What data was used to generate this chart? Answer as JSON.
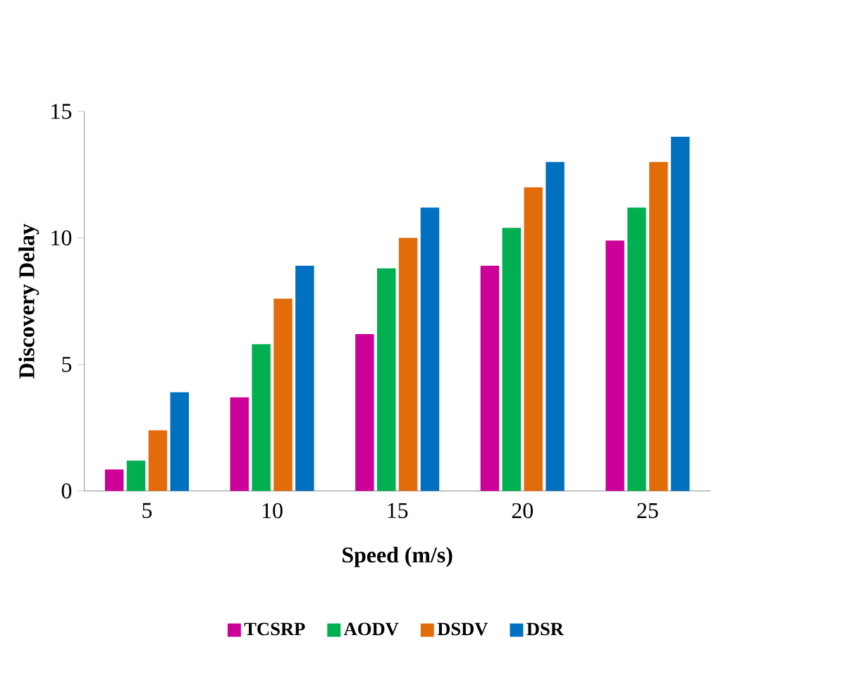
{
  "chart_data": {
    "type": "bar",
    "xlabel": "Speed (m/s)",
    "ylabel": "Discovery Delay",
    "categories": [
      "5",
      "10",
      "15",
      "20",
      "25"
    ],
    "series": [
      {
        "name": "TCSRP",
        "color": "#cc0099",
        "values": [
          0.85,
          3.7,
          6.2,
          8.9,
          9.9
        ]
      },
      {
        "name": "AODV",
        "color": "#00b050",
        "values": [
          1.2,
          5.8,
          8.8,
          10.4,
          11.2
        ]
      },
      {
        "name": "DSDV",
        "color": "#e36c0a",
        "values": [
          2.4,
          7.6,
          10,
          12,
          13
        ]
      },
      {
        "name": "DSR",
        "color": "#0070c0",
        "values": [
          3.9,
          8.9,
          11.2,
          13,
          14
        ]
      }
    ],
    "ylim": [
      0,
      15
    ],
    "yticks": [
      0,
      5,
      10,
      15
    ],
    "grid": false,
    "legend": "bottom"
  }
}
